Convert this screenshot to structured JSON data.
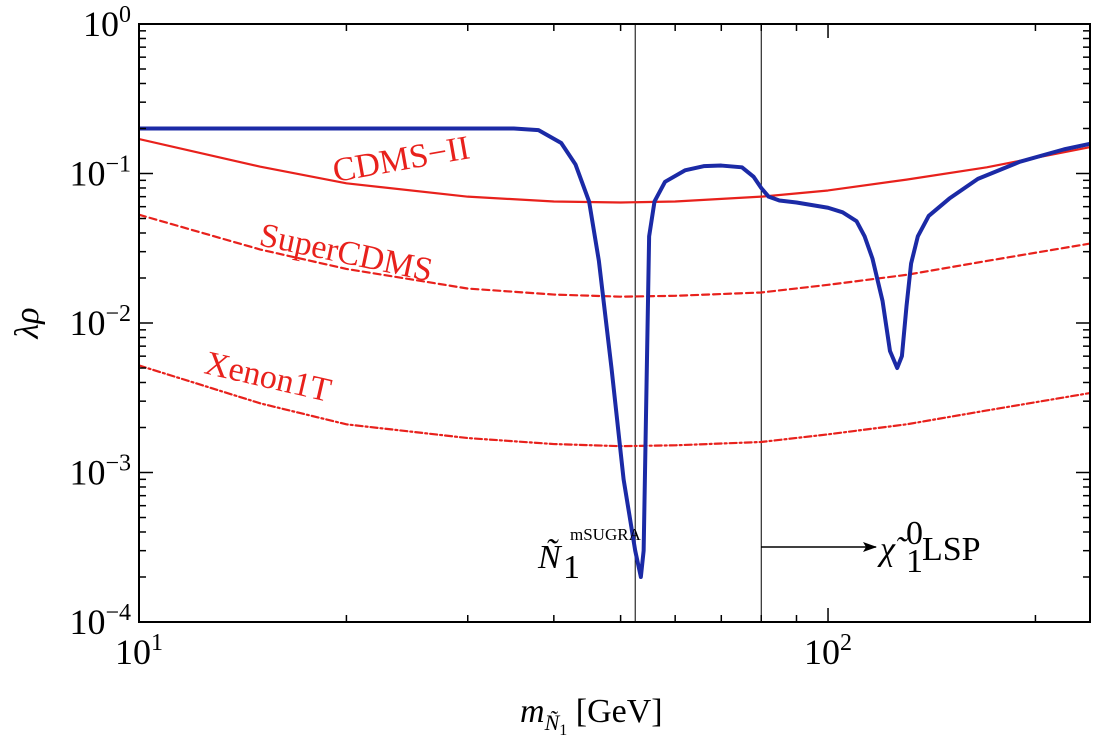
{
  "chart_data": {
    "type": "line",
    "x_scale": "log",
    "y_scale": "log",
    "xlim": [
      10,
      240
    ],
    "ylim": [
      0.0001,
      1
    ],
    "grid": false,
    "xlabel": {
      "main": "m",
      "sub": "Ñ",
      "sub_index": "1",
      "unit": "[GeV]"
    },
    "ylabel": "λρ",
    "x_ticks": [
      {
        "value": 10,
        "base": "10",
        "exp": "1"
      },
      {
        "value": 100,
        "base": "10",
        "exp": "2"
      }
    ],
    "y_ticks": [
      {
        "value": 1,
        "base": "10",
        "exp": "0"
      },
      {
        "value": 0.1,
        "base": "10",
        "exp": "−1"
      },
      {
        "value": 0.01,
        "base": "10",
        "exp": "−2"
      },
      {
        "value": 0.001,
        "base": "10",
        "exp": "−3"
      },
      {
        "value": 0.0001,
        "base": "10",
        "exp": "−4"
      }
    ],
    "series": [
      {
        "name": "CDMS−II",
        "color": "#e8211c",
        "style": "solid",
        "x": [
          10,
          15,
          20,
          30,
          40,
          50,
          60,
          80,
          100,
          130,
          170,
          240
        ],
        "y": [
          0.17,
          0.111,
          0.086,
          0.07,
          0.065,
          0.064,
          0.065,
          0.07,
          0.077,
          0.091,
          0.11,
          0.15
        ]
      },
      {
        "name": "SuperCDMS",
        "color": "#e8211c",
        "style": "dashed",
        "x": [
          10,
          15,
          20,
          30,
          40,
          50,
          60,
          80,
          100,
          130,
          170,
          240
        ],
        "y": [
          0.053,
          0.031,
          0.023,
          0.017,
          0.0155,
          0.015,
          0.0152,
          0.016,
          0.018,
          0.021,
          0.026,
          0.034
        ]
      },
      {
        "name": "Xenon1T",
        "color": "#e8211c",
        "style": "dashdot",
        "x": [
          10,
          15,
          20,
          30,
          40,
          50,
          60,
          80,
          100,
          130,
          170,
          240
        ],
        "y": [
          0.0052,
          0.0029,
          0.0021,
          0.0017,
          0.00155,
          0.0015,
          0.00152,
          0.0016,
          0.0018,
          0.0021,
          0.0026,
          0.0034
        ]
      },
      {
        "name": "",
        "color": "#1b2aa6",
        "style": "solid",
        "x": [
          10,
          20,
          35,
          38,
          41,
          43,
          45,
          46.5,
          48.5,
          50.5,
          52.5,
          53.5,
          54,
          55,
          56,
          58,
          62,
          66,
          70,
          75,
          78,
          80,
          82,
          85,
          90,
          100,
          105,
          110,
          113,
          116,
          120,
          123,
          126,
          128,
          130,
          132,
          135,
          140,
          150,
          165,
          190,
          220,
          240
        ],
        "y": [
          0.2,
          0.2,
          0.2,
          0.195,
          0.16,
          0.115,
          0.065,
          0.026,
          0.005,
          0.0009,
          0.0003,
          0.0002,
          0.0003,
          0.038,
          0.065,
          0.088,
          0.105,
          0.112,
          0.113,
          0.11,
          0.095,
          0.08,
          0.07,
          0.066,
          0.064,
          0.059,
          0.055,
          0.048,
          0.038,
          0.027,
          0.014,
          0.0065,
          0.005,
          0.006,
          0.013,
          0.025,
          0.038,
          0.052,
          0.068,
          0.092,
          0.12,
          0.145,
          0.158
        ]
      }
    ],
    "vlines": [
      52.5,
      80
    ],
    "annotations": {
      "mSUGRA_label": {
        "main": "Ñ",
        "sub": "1",
        "sup": "mSUGRA"
      },
      "LSP_label": {
        "main": "χ̃",
        "sub": "1",
        "sup": "0",
        "rest": " LSP"
      }
    }
  }
}
